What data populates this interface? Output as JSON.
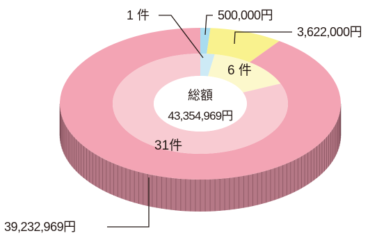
{
  "chart_data": {
    "type": "pie",
    "style": "3d-double-donut",
    "center_title": "総額",
    "center_total": "43,354,969円",
    "outer_ring": {
      "slices": [
        {
          "label": "500,000円",
          "value": 500000,
          "color": "#a8dcf0"
        },
        {
          "label": "3,622,000円",
          "value": 3622000,
          "color": "#f9f28e"
        },
        {
          "label": "39,232,969円",
          "value": 39232969,
          "color": "#f3a4b4"
        }
      ]
    },
    "inner_ring": {
      "slices": [
        {
          "label": "1 件",
          "value": 1,
          "color": "#cdeaf6"
        },
        {
          "label": "6 件",
          "value": 6,
          "color": "#fcf8cc"
        },
        {
          "label": "31件",
          "value": 31,
          "color": "#f8cbd2"
        }
      ]
    },
    "side_color": "#b57886"
  }
}
